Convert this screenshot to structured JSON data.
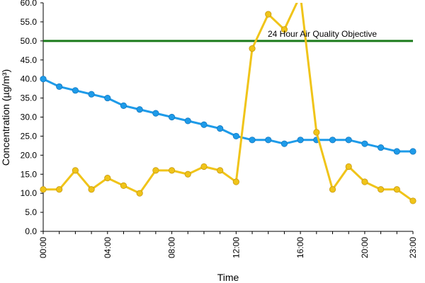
{
  "chart_data": {
    "type": "line",
    "xlabel": "Time",
    "ylabel": "Concentration (µg/m³)",
    "ylim": [
      0,
      60
    ],
    "y_ticks": [
      "0.0",
      "5.0",
      "10.0",
      "15.0",
      "20.0",
      "25.0",
      "30.0",
      "35.0",
      "40.0",
      "45.0",
      "50.0",
      "55.0",
      "60.0"
    ],
    "x_hours": [
      0,
      1,
      2,
      3,
      4,
      5,
      6,
      7,
      8,
      9,
      10,
      11,
      12,
      13,
      14,
      15,
      16,
      17,
      18,
      19,
      20,
      21,
      22,
      23
    ],
    "x_tick_labels": [
      "00:00",
      "04:00",
      "08:00",
      "12:00",
      "16:00",
      "20:00",
      "23:00"
    ],
    "x_tick_hours": [
      0,
      4,
      8,
      12,
      16,
      20,
      23
    ],
    "grid": false,
    "series": [
      {
        "color": "#1e9be9",
        "values": [
          40,
          38,
          37,
          36,
          35,
          33,
          32,
          31,
          30,
          29,
          28,
          27,
          25,
          24,
          24,
          23,
          24,
          24,
          24,
          24,
          23,
          22,
          21,
          21
        ]
      },
      {
        "color": "#f0c419",
        "values": [
          11,
          11,
          16,
          11,
          14,
          12,
          10,
          16,
          16,
          15,
          17,
          16,
          13,
          48,
          57,
          53,
          62,
          26,
          11,
          17,
          13,
          11,
          11,
          8
        ]
      }
    ],
    "reference_line": {
      "value": 50,
      "label": "24 Hour Air Quality Objective",
      "color": "#1a7a1a"
    }
  }
}
